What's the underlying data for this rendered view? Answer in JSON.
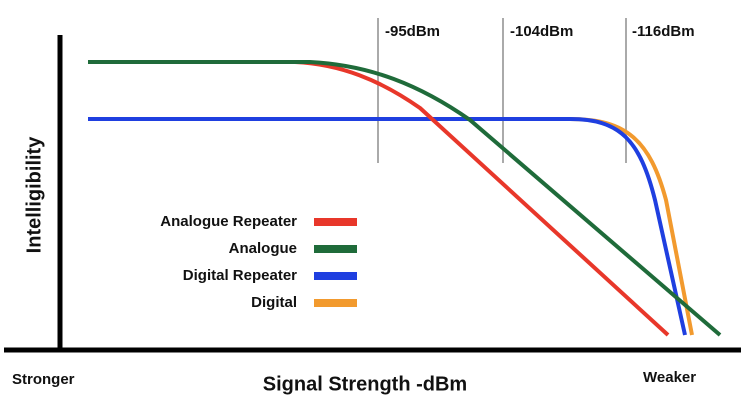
{
  "y_axis_label": "Intelligibility",
  "x_axis_label": "Signal Strength -dBm",
  "x_axis_left": "Stronger",
  "x_axis_right": "Weaker",
  "markers": [
    "-95dBm",
    "-104dBm",
    "-116dBm"
  ],
  "legend": [
    {
      "name": "Analogue Repeater",
      "color": "#e8372a"
    },
    {
      "name": "Analogue",
      "color": "#1f6b3a"
    },
    {
      "name": "Digital Repeater",
      "color": "#1f3fe0"
    },
    {
      "name": "Digital",
      "color": "#f29a2e"
    }
  ]
}
